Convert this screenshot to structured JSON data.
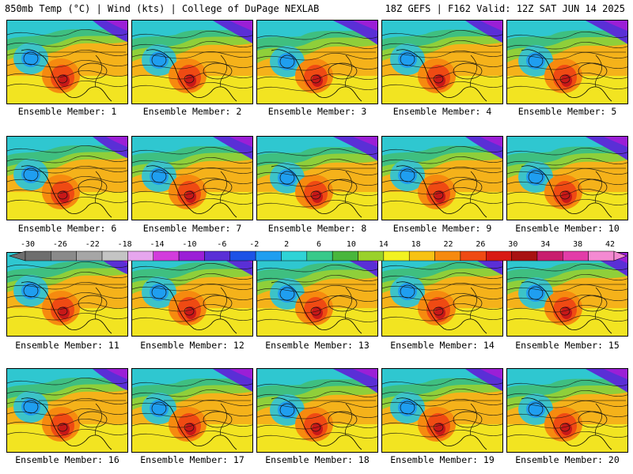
{
  "header": {
    "left": "850mb Temp (°C) | Wind (kts) | College of DuPage NEXLAB",
    "right": "18Z GEFS | F162 Valid: 12Z SAT JUN 14 2025"
  },
  "members": [
    {
      "label": "Ensemble Member: 1"
    },
    {
      "label": "Ensemble Member: 2"
    },
    {
      "label": "Ensemble Member: 3"
    },
    {
      "label": "Ensemble Member: 4"
    },
    {
      "label": "Ensemble Member: 5"
    },
    {
      "label": "Ensemble Member: 6"
    },
    {
      "label": "Ensemble Member: 7"
    },
    {
      "label": "Ensemble Member: 8"
    },
    {
      "label": "Ensemble Member: 9"
    },
    {
      "label": "Ensemble Member: 10"
    },
    {
      "label": "Ensemble Member: 11"
    },
    {
      "label": "Ensemble Member: 12"
    },
    {
      "label": "Ensemble Member: 13"
    },
    {
      "label": "Ensemble Member: 14"
    },
    {
      "label": "Ensemble Member: 15"
    },
    {
      "label": "Ensemble Member: 16"
    },
    {
      "label": "Ensemble Member: 17"
    },
    {
      "label": "Ensemble Member: 18"
    },
    {
      "label": "Ensemble Member: 19"
    },
    {
      "label": "Ensemble Member: 20"
    }
  ],
  "colorbar": {
    "ticks": [
      "-30",
      "-26",
      "-22",
      "-18",
      "-14",
      "-10",
      "-6",
      "-2",
      "2",
      "6",
      "10",
      "14",
      "18",
      "22",
      "26",
      "30",
      "34",
      "38",
      "42"
    ],
    "colors": [
      "#6e6e6e",
      "#8a8a8a",
      "#a6a6a6",
      "#c4c4c4",
      "#e6a6ee",
      "#d23cdc",
      "#9b1fd6",
      "#5a2fd6",
      "#1c52e6",
      "#1f9ef0",
      "#2fd3d6",
      "#38c98a",
      "#49b63c",
      "#9ad12a",
      "#f2f221",
      "#f7c214",
      "#f68a0f",
      "#ef4a13",
      "#d81a14",
      "#a81212",
      "#c81e6e",
      "#e23ca8",
      "#f48ad2"
    ]
  }
}
